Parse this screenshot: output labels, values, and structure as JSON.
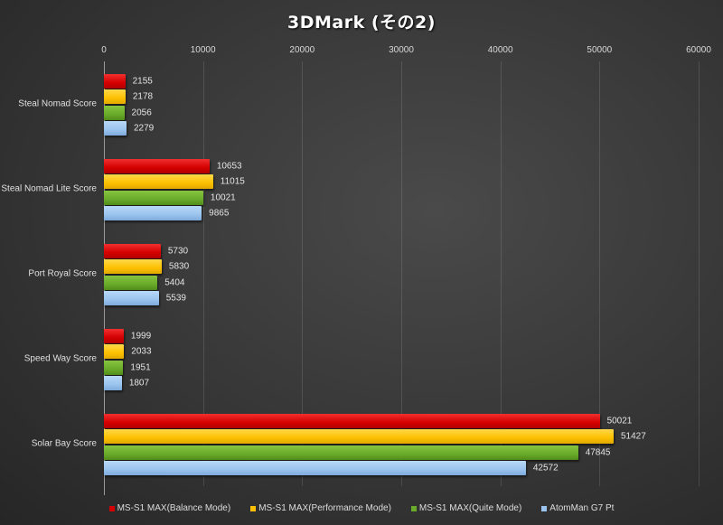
{
  "chart_data": {
    "type": "bar",
    "orientation": "horizontal",
    "title": "3DMark (その2)",
    "xlabel": "",
    "ylabel": "",
    "xlim": [
      0,
      60000
    ],
    "x_ticks": [
      0,
      10000,
      20000,
      30000,
      40000,
      50000,
      60000
    ],
    "grid": true,
    "legend_position": "bottom",
    "categories": [
      "Steal Nomad Score",
      "Steal Nomad Lite Score",
      "Port Royal Score",
      "Speed Way Score",
      "Solar Bay Score"
    ],
    "series": [
      {
        "name": "MS-S1 MAX(Balance Mode)",
        "color": "#d40000",
        "values": [
          2155,
          10653,
          5730,
          1999,
          50021
        ]
      },
      {
        "name": "MS-S1 MAX(Performance Mode)",
        "color": "#fcc000",
        "values": [
          2178,
          11015,
          5830,
          2033,
          51427
        ]
      },
      {
        "name": "MS-S1 MAX(Quite Mode)",
        "color": "#6aaa2a",
        "values": [
          2056,
          10021,
          5404,
          1951,
          47845
        ]
      },
      {
        "name": "AtomMan G7 Pt",
        "color": "#9ac4ee",
        "values": [
          2279,
          9865,
          5539,
          1807,
          42572
        ]
      }
    ]
  }
}
